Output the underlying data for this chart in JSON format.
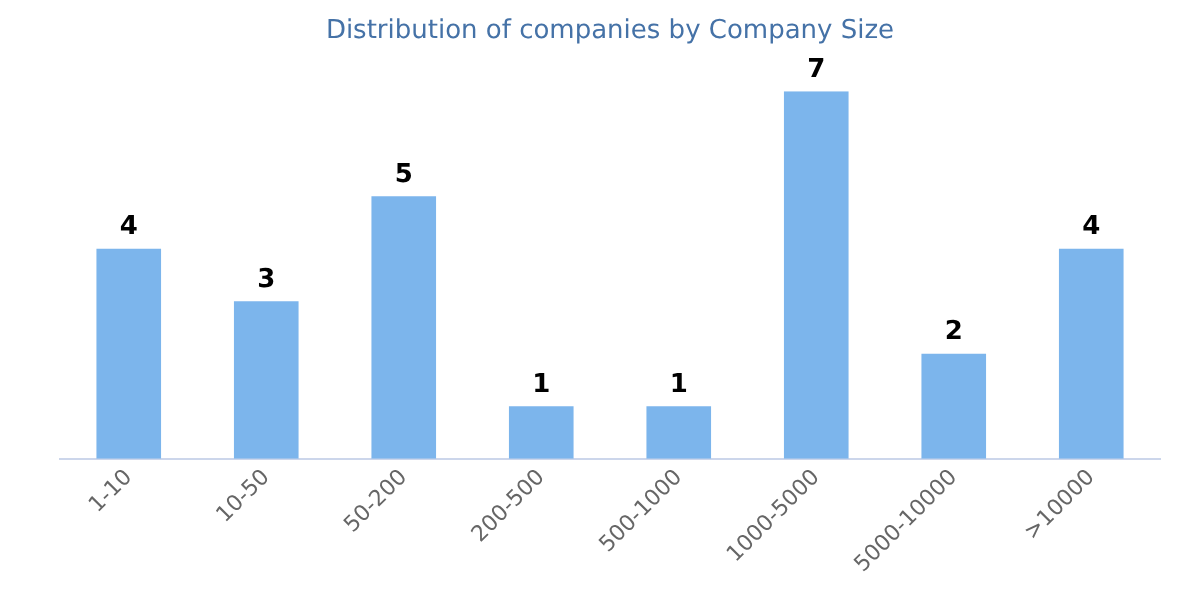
{
  "chart_data": {
    "type": "bar",
    "title": "Distribution of companies by Company Size",
    "categories": [
      "1-10",
      "10-50",
      "50-200",
      "200-500",
      "500-1000",
      "1000-5000",
      "5000-10000",
      ">10000"
    ],
    "values": [
      4,
      3,
      5,
      1,
      1,
      7,
      2,
      4
    ],
    "color": "#7cb5ec",
    "tick_labels": "x",
    "data_labels": true,
    "grid": false,
    "legend": false
  }
}
